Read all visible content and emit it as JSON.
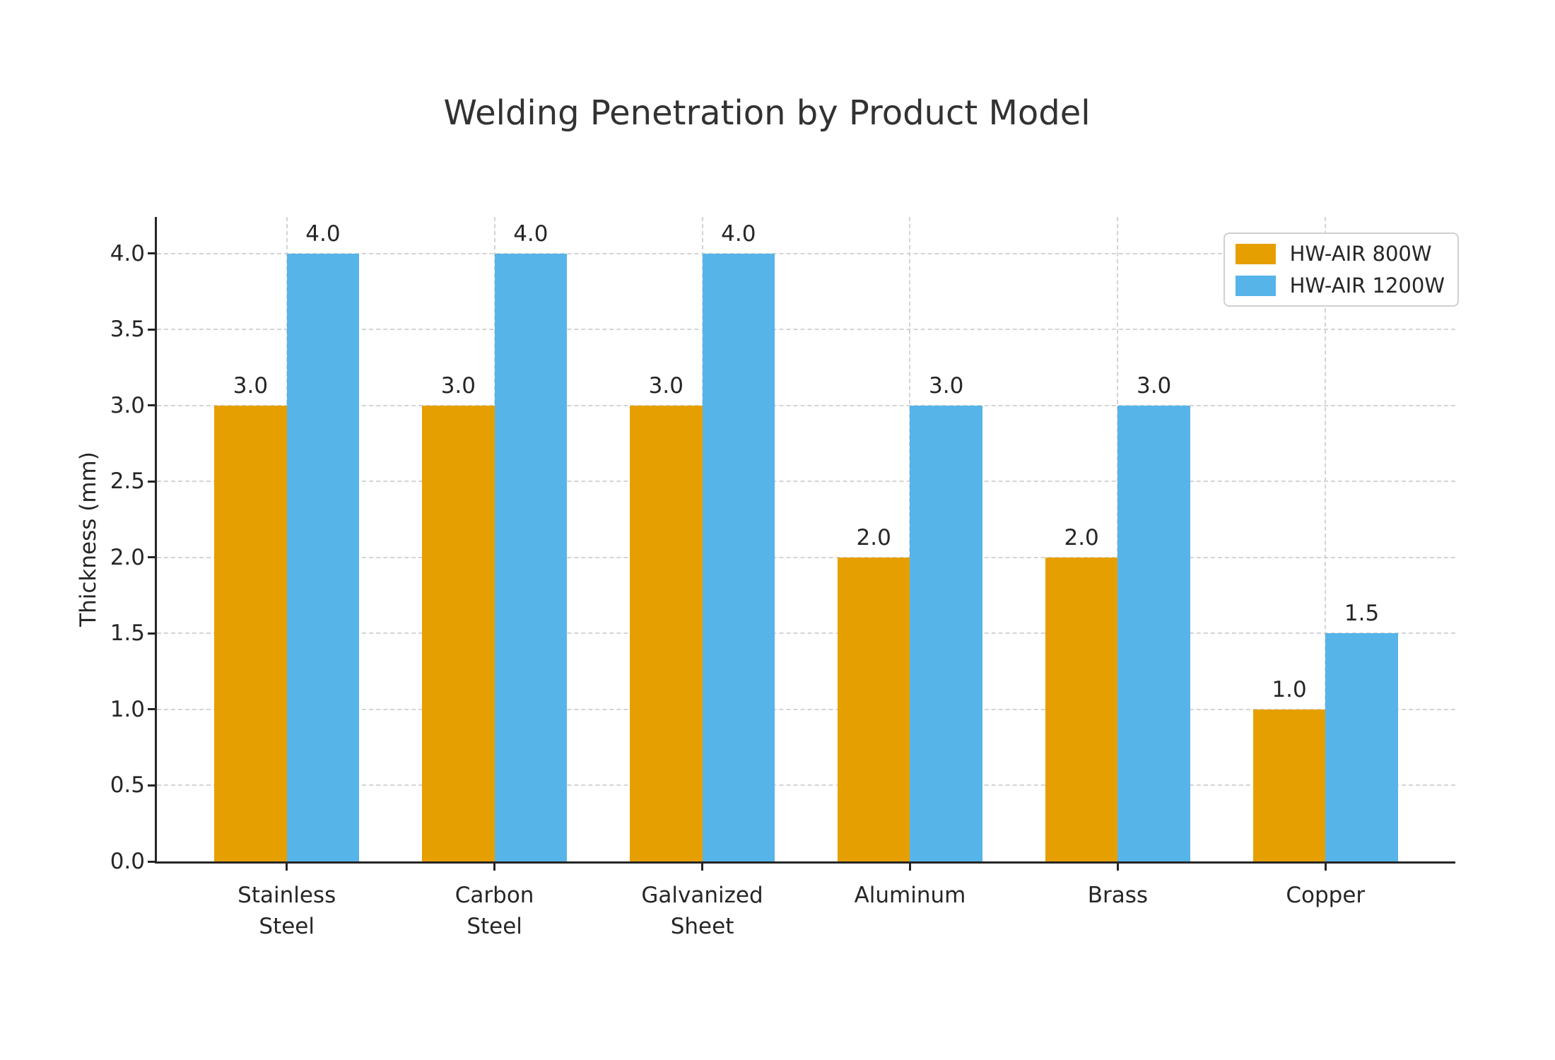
{
  "chart_data": {
    "type": "bar",
    "title": "Welding Penetration by Product Model",
    "xlabel": "",
    "ylabel": "Thickness (mm)",
    "categories": [
      "Stainless\nSteel",
      "Carbon\nSteel",
      "Galvanized\nSheet",
      "Aluminum",
      "Brass",
      "Copper"
    ],
    "series": [
      {
        "name": "HW-AIR 800W",
        "color": "#E69F00",
        "values": [
          3.0,
          3.0,
          3.0,
          2.0,
          2.0,
          1.0
        ],
        "value_labels": [
          "3.0",
          "3.0",
          "3.0",
          "2.0",
          "2.0",
          "1.0"
        ]
      },
      {
        "name": "HW-AIR 1200W",
        "color": "#56B4E9",
        "values": [
          4.0,
          4.0,
          4.0,
          3.0,
          3.0,
          1.5
        ],
        "value_labels": [
          "4.0",
          "4.0",
          "4.0",
          "3.0",
          "3.0",
          "1.5"
        ]
      }
    ],
    "ylim": [
      0,
      4.24
    ],
    "yticks": [
      0.0,
      0.5,
      1.0,
      1.5,
      2.0,
      2.5,
      3.0,
      3.5,
      4.0
    ],
    "ytick_labels": [
      "0.0",
      "0.5",
      "1.0",
      "1.5",
      "2.0",
      "2.5",
      "3.0",
      "3.5",
      "4.0"
    ],
    "grid": "dashed horizontal at yticks, dashed vertical at category centers",
    "legend_position": "upper right",
    "bar_value_labels_shown": true
  },
  "colors": {
    "background": "#ffffff",
    "axis_spine": "#262626",
    "gridline": "#d4d4d4",
    "text": "#262626",
    "title_text": "#323232"
  }
}
